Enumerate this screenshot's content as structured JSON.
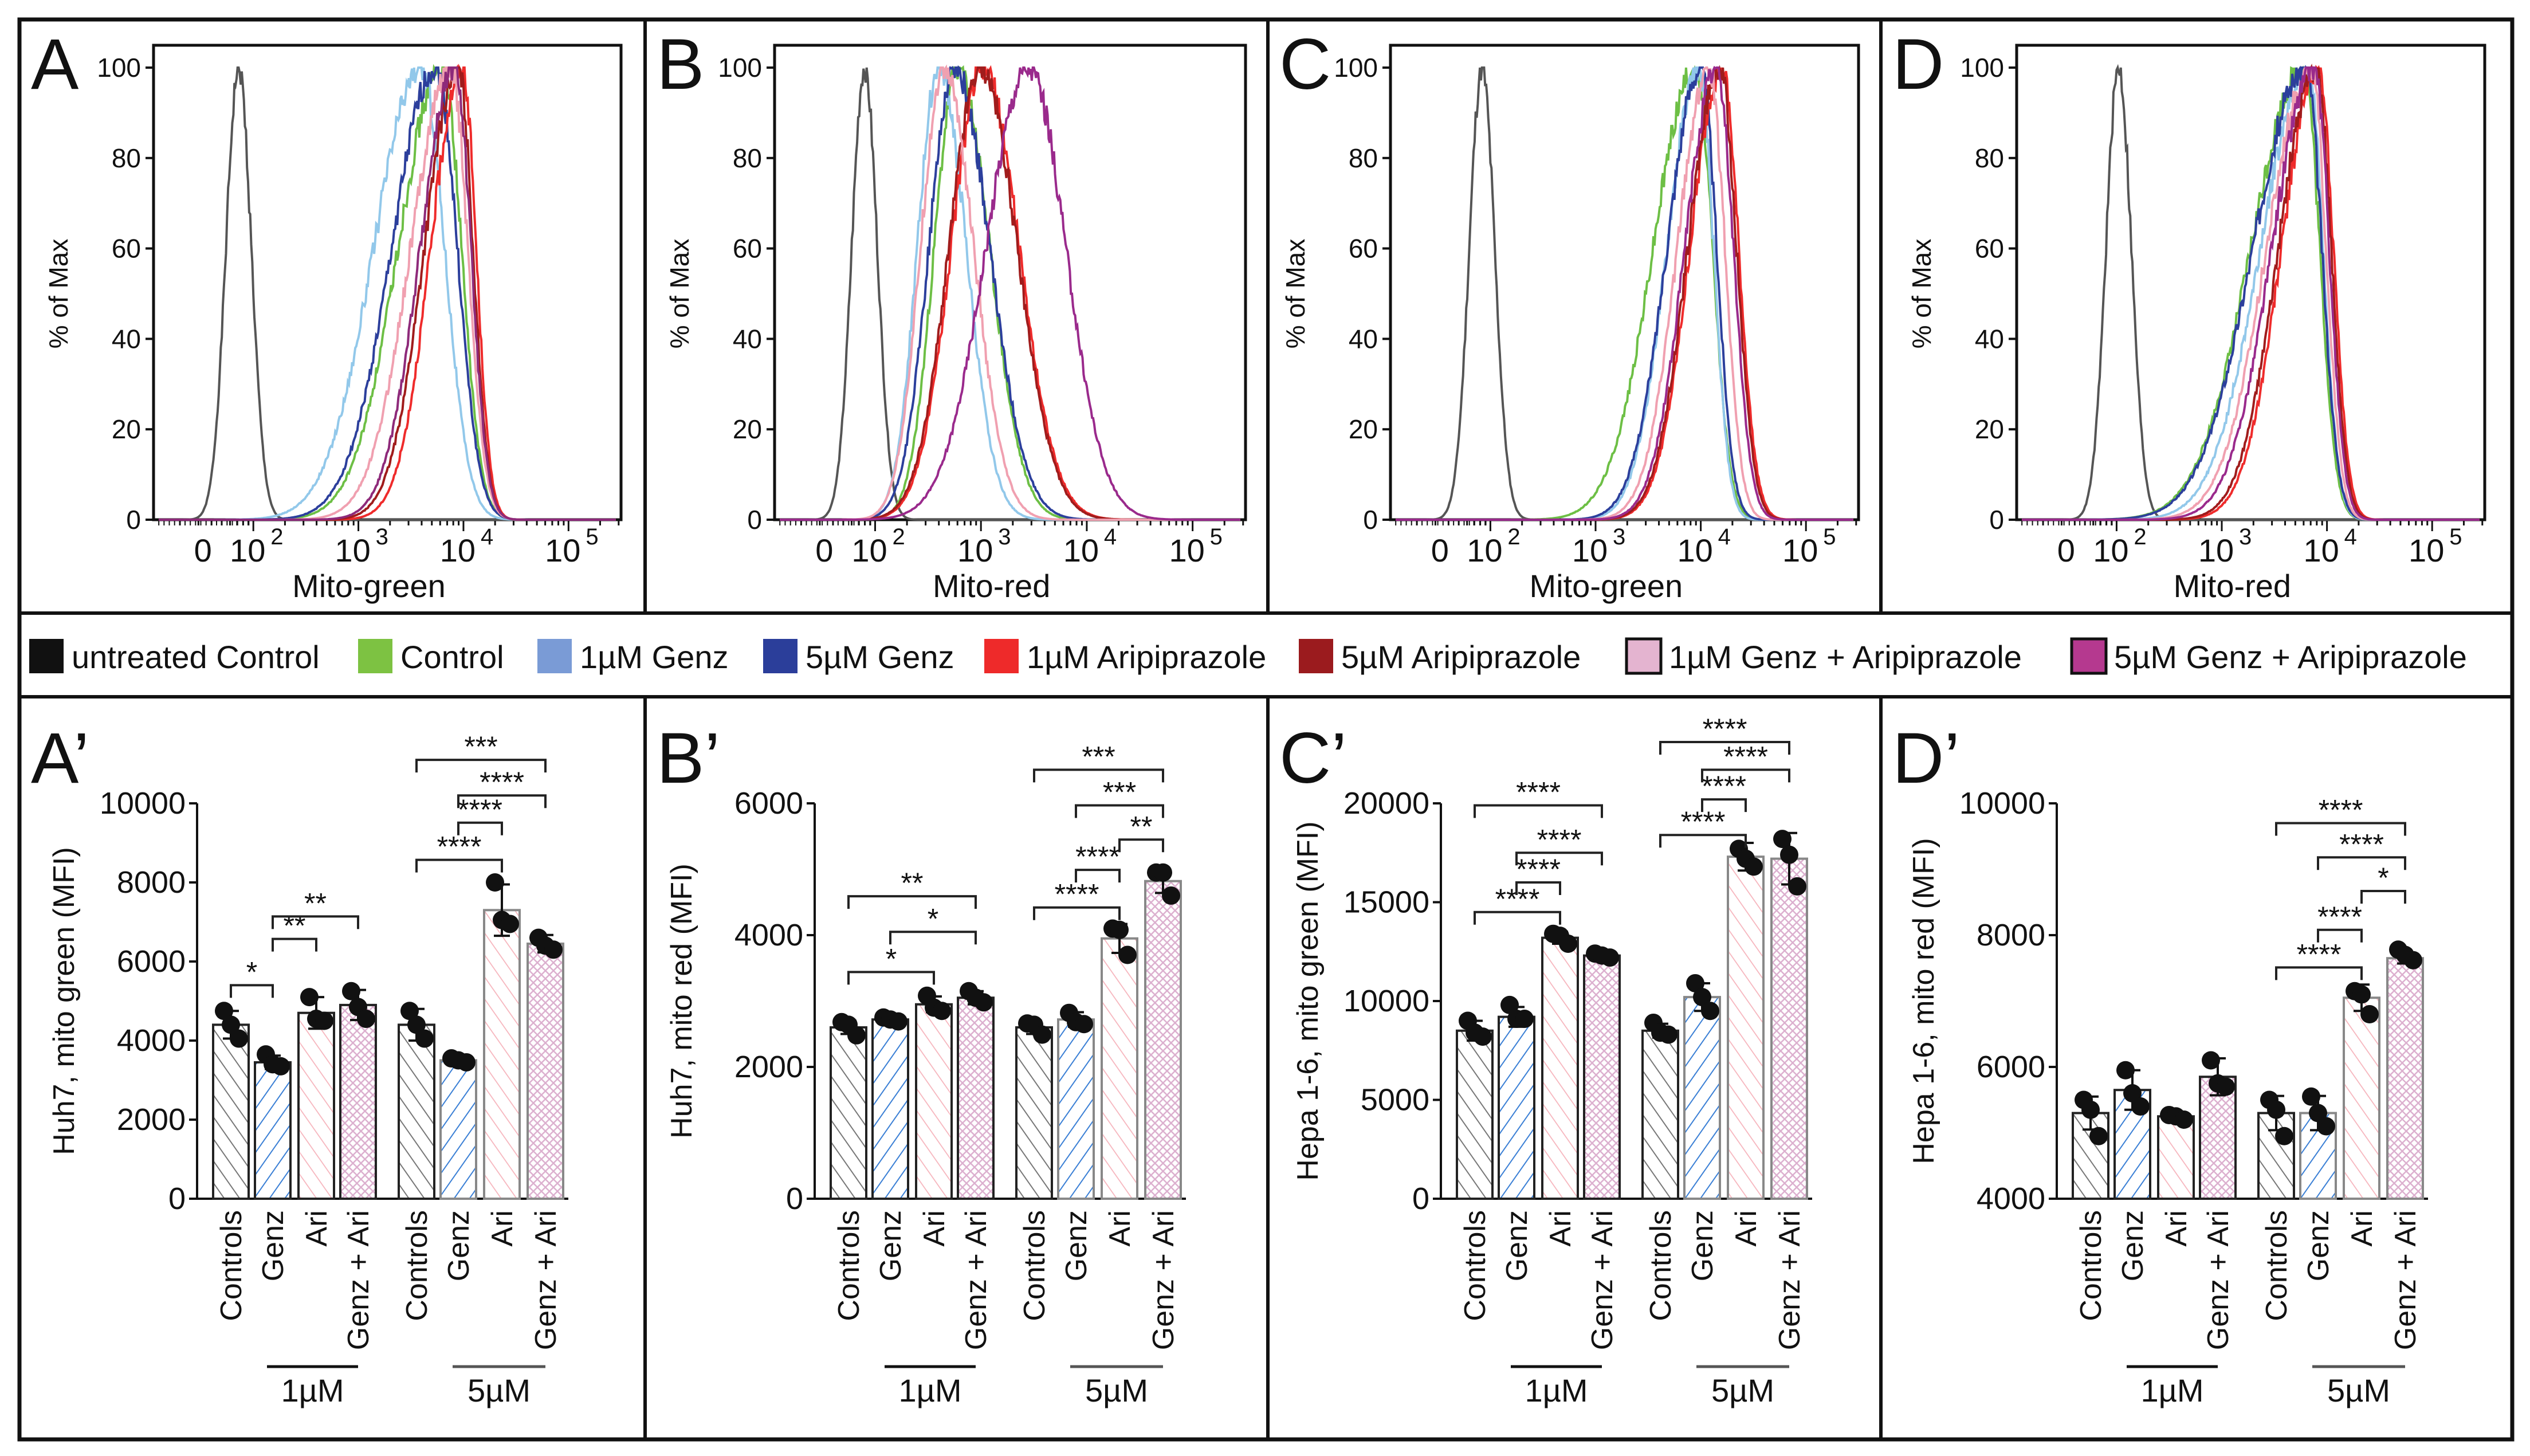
{
  "legend": {
    "items": [
      {
        "label": "untreated Control",
        "color": "#111111"
      },
      {
        "label": "Control",
        "color": "#7dc242"
      },
      {
        "label": "1µM Genz",
        "color": "#7a9bd6"
      },
      {
        "label": "5µM Genz",
        "color": "#2b3e9a"
      },
      {
        "label": "1µM Aripiprazole",
        "color": "#ee2a2a"
      },
      {
        "label": "5µM Aripiprazole",
        "color": "#9b1b1e"
      },
      {
        "label": "1µM Genz + Aripiprazole",
        "color": "#e4b4d0"
      },
      {
        "label": "5µM Genz + Aripiprazole",
        "color": "#b5398f"
      }
    ]
  },
  "chart_data": [
    {
      "type": "line",
      "panel": "A",
      "xlabel": "Mito-green",
      "ylabel": "% of Max",
      "ylim": [
        0,
        100
      ],
      "yticks": [
        "0",
        "20",
        "40",
        "60",
        "80",
        "100"
      ],
      "xticks": [
        "0",
        "10",
        "10",
        "10",
        "10"
      ],
      "xtick_exp": [
        "",
        "2",
        "3",
        "4",
        "5"
      ],
      "series": [
        {
          "name": "untreated Control",
          "color": "#555555",
          "peak_log10": 1.86,
          "sigma": [
            0.12,
            0.12
          ]
        },
        {
          "name": "Control",
          "color": "#6dbf45",
          "peak_log10": 3.8,
          "sigma": [
            0.42,
            0.18
          ]
        },
        {
          "name": "1µM Genz",
          "color": "#92c8ea",
          "peak_log10": 3.6,
          "sigma": [
            0.45,
            0.22
          ]
        },
        {
          "name": "5µM Genz",
          "color": "#2c3f9c",
          "peak_log10": 3.74,
          "sigma": [
            0.42,
            0.2
          ]
        },
        {
          "name": "1µM Aripiprazole",
          "color": "#ef2b2b",
          "peak_log10": 3.99,
          "sigma": [
            0.3,
            0.13
          ]
        },
        {
          "name": "5µM Aripiprazole",
          "color": "#a01c1c",
          "peak_log10": 3.95,
          "sigma": [
            0.32,
            0.14
          ]
        },
        {
          "name": "1µM Genz + Aripiprazole",
          "color": "#f0a0b0",
          "peak_log10": 3.88,
          "sigma": [
            0.38,
            0.16
          ]
        },
        {
          "name": "5µM Genz + Aripiprazole",
          "color": "#8e2a7a",
          "peak_log10": 3.92,
          "sigma": [
            0.33,
            0.15
          ]
        }
      ]
    },
    {
      "type": "line",
      "panel": "B",
      "xlabel": "Mito-red",
      "ylabel": "% of Max",
      "ylim": [
        0,
        100
      ],
      "yticks": [
        "0",
        "20",
        "40",
        "60",
        "80",
        "100"
      ],
      "xticks": [
        "0",
        "10",
        "10",
        "10",
        "10"
      ],
      "xtick_exp": [
        "",
        "2",
        "3",
        "4",
        "5"
      ],
      "series": [
        {
          "name": "untreated Control",
          "color": "#555555",
          "peak_log10": 1.9,
          "sigma": [
            0.12,
            0.12
          ]
        },
        {
          "name": "Control",
          "color": "#6dbf45",
          "peak_log10": 2.78,
          "sigma": [
            0.22,
            0.3
          ]
        },
        {
          "name": "1µM Genz",
          "color": "#92c8ea",
          "peak_log10": 2.6,
          "sigma": [
            0.2,
            0.26
          ]
        },
        {
          "name": "5µM Genz",
          "color": "#2c3f9c",
          "peak_log10": 2.75,
          "sigma": [
            0.24,
            0.33
          ]
        },
        {
          "name": "1µM Aripiprazole",
          "color": "#ef2b2b",
          "peak_log10": 3.02,
          "sigma": [
            0.3,
            0.34
          ]
        },
        {
          "name": "5µM Aripiprazole",
          "color": "#a01c1c",
          "peak_log10": 3.0,
          "sigma": [
            0.3,
            0.34
          ]
        },
        {
          "name": "1µM Genz + Aripiprazole",
          "color": "#f0a0b0",
          "peak_log10": 2.65,
          "sigma": [
            0.22,
            0.28
          ]
        },
        {
          "name": "5µM Genz + Aripiprazole",
          "color": "#9a2a8c",
          "peak_log10": 3.45,
          "sigma": [
            0.4,
            0.35
          ]
        }
      ]
    },
    {
      "type": "line",
      "panel": "C",
      "xlabel": "Mito-green",
      "ylabel": "% of Max",
      "ylim": [
        0,
        100
      ],
      "yticks": [
        "0",
        "20",
        "40",
        "60",
        "80",
        "100"
      ],
      "xticks": [
        "0",
        "10",
        "10",
        "10",
        "10"
      ],
      "xtick_exp": [
        "",
        "2",
        "3",
        "4",
        "5"
      ],
      "series": [
        {
          "name": "untreated Control",
          "color": "#555555",
          "peak_log10": 1.92,
          "sigma": [
            0.12,
            0.12
          ]
        },
        {
          "name": "Control",
          "color": "#6dbf45",
          "peak_log10": 3.95,
          "sigma": [
            0.4,
            0.16
          ]
        },
        {
          "name": "1µM Genz",
          "color": "#92c8ea",
          "peak_log10": 3.98,
          "sigma": [
            0.3,
            0.14
          ]
        },
        {
          "name": "5µM Genz",
          "color": "#2c3f9c",
          "peak_log10": 4.0,
          "sigma": [
            0.32,
            0.15
          ]
        },
        {
          "name": "1µM Aripiprazole",
          "color": "#ef2b2b",
          "peak_log10": 4.2,
          "sigma": [
            0.3,
            0.16
          ]
        },
        {
          "name": "5µM Aripiprazole",
          "color": "#a01c1c",
          "peak_log10": 4.18,
          "sigma": [
            0.3,
            0.16
          ]
        },
        {
          "name": "1µM Genz + Aripiprazole",
          "color": "#f0a0b0",
          "peak_log10": 4.08,
          "sigma": [
            0.3,
            0.15
          ]
        },
        {
          "name": "5µM Genz + Aripiprazole",
          "color": "#9a2a8c",
          "peak_log10": 4.15,
          "sigma": [
            0.3,
            0.16
          ]
        }
      ]
    },
    {
      "type": "line",
      "panel": "D",
      "xlabel": "Mito-red",
      "ylabel": "% of Max",
      "ylim": [
        0,
        100
      ],
      "yticks": [
        "0",
        "20",
        "40",
        "60",
        "80",
        "100"
      ],
      "xticks": [
        "0",
        "10",
        "10",
        "10",
        "10"
      ],
      "xtick_exp": [
        "",
        "2",
        "3",
        "4",
        "5"
      ],
      "series": [
        {
          "name": "untreated Control",
          "color": "#555555",
          "peak_log10": 2.02,
          "sigma": [
            0.12,
            0.12
          ]
        },
        {
          "name": "Control",
          "color": "#6dbf45",
          "peak_log10": 3.78,
          "sigma": [
            0.5,
            0.15
          ]
        },
        {
          "name": "1µM Genz",
          "color": "#92c8ea",
          "peak_log10": 3.82,
          "sigma": [
            0.45,
            0.14
          ]
        },
        {
          "name": "5µM Genz",
          "color": "#2c3f9c",
          "peak_log10": 3.8,
          "sigma": [
            0.5,
            0.15
          ]
        },
        {
          "name": "1µM Aripiprazole",
          "color": "#ef2b2b",
          "peak_log10": 3.92,
          "sigma": [
            0.35,
            0.14
          ]
        },
        {
          "name": "5µM Aripiprazole",
          "color": "#a01c1c",
          "peak_log10": 3.9,
          "sigma": [
            0.36,
            0.14
          ]
        },
        {
          "name": "1µM Genz + Aripiprazole",
          "color": "#f0a0b0",
          "peak_log10": 3.85,
          "sigma": [
            0.42,
            0.14
          ]
        },
        {
          "name": "5µM Genz + Aripiprazole",
          "color": "#9a2a8c",
          "peak_log10": 3.88,
          "sigma": [
            0.4,
            0.14
          ]
        }
      ]
    },
    {
      "type": "bar",
      "panel": "A’",
      "ylabel": "Huh7, mito green (MFI)",
      "ylim": [
        0,
        10000
      ],
      "yticks": [
        "0",
        "2000",
        "4000",
        "6000",
        "8000",
        "10000"
      ],
      "categories": [
        "Controls",
        "Genz",
        "Ari",
        "Genz + Ari",
        "Controls",
        "Genz",
        "Ari",
        "Genz + Ari"
      ],
      "groups": [
        "1µM",
        "5µM"
      ],
      "values": [
        4400,
        3450,
        4700,
        4900,
        4400,
        3500,
        7300,
        6450
      ],
      "sd": [
        350,
        170,
        400,
        380,
        400,
        60,
        650,
        220
      ],
      "points": [
        [
          4750,
          4400,
          4050
        ],
        [
          3650,
          3400,
          3350
        ],
        [
          5100,
          4550,
          4500
        ],
        [
          5250,
          4850,
          4550
        ],
        [
          4750,
          4400,
          4050
        ],
        [
          3550,
          3500,
          3450
        ],
        [
          8000,
          7050,
          6950
        ],
        [
          6600,
          6400,
          6300
        ]
      ],
      "significance": [
        {
          "from": 0,
          "to": 1,
          "label": "*",
          "level": 5400
        },
        {
          "from": 1,
          "to": 2,
          "label": "**",
          "level": 6570
        },
        {
          "from": 1,
          "to": 3,
          "label": "**",
          "level": 7140
        },
        {
          "from": 4,
          "to": 6,
          "label": "****",
          "level": 8570
        },
        {
          "from": 5,
          "to": 6,
          "label": "****",
          "level": 9510
        },
        {
          "from": 5,
          "to": 7,
          "label": "****",
          "level": 10200
        },
        {
          "from": 4,
          "to": 7,
          "label": "***",
          "level": 11100
        }
      ]
    },
    {
      "type": "bar",
      "panel": "B’",
      "ylabel": "Huh7, mito red (MFI)",
      "ylim": [
        0,
        6000
      ],
      "yticks": [
        "0",
        "2000",
        "4000",
        "6000"
      ],
      "categories": [
        "Controls",
        "Genz",
        "Ari",
        "Genz + Ari",
        "Controls",
        "Genz",
        "Ari",
        "Genz + Ari"
      ],
      "groups": [
        "1µM",
        "5µM"
      ],
      "values": [
        2600,
        2720,
        2950,
        3050,
        2600,
        2720,
        3950,
        4820
      ],
      "sd": [
        100,
        30,
        120,
        100,
        100,
        110,
        220,
        180
      ],
      "points": [
        [
          2680,
          2640,
          2480
        ],
        [
          2750,
          2720,
          2690
        ],
        [
          3080,
          2900,
          2850
        ],
        [
          3150,
          3050,
          2980
        ],
        [
          2660,
          2640,
          2490
        ],
        [
          2820,
          2680,
          2650
        ],
        [
          4100,
          4080,
          3700
        ],
        [
          4950,
          4950,
          4600
        ]
      ],
      "significance": [
        {
          "from": 0,
          "to": 2,
          "label": "*",
          "level": 3440
        },
        {
          "from": 1,
          "to": 3,
          "label": "*",
          "level": 4050
        },
        {
          "from": 0,
          "to": 3,
          "label": "**",
          "level": 4590
        },
        {
          "from": 4,
          "to": 6,
          "label": "****",
          "level": 4420
        },
        {
          "from": 5,
          "to": 6,
          "label": "****",
          "level": 4990
        },
        {
          "from": 6,
          "to": 7,
          "label": "**",
          "level": 5450
        },
        {
          "from": 5,
          "to": 7,
          "label": "***",
          "level": 5970
        },
        {
          "from": 4,
          "to": 7,
          "label": "***",
          "level": 6510
        }
      ]
    },
    {
      "type": "bar",
      "panel": "C’",
      "ylabel": "Hepa 1-6, mito green (MFI)",
      "ylim": [
        0,
        20000
      ],
      "yticks": [
        "0",
        "5000",
        "10000",
        "15000",
        "20000"
      ],
      "categories": [
        "Controls",
        "Genz",
        "Ari",
        "Genz + Ari",
        "Controls",
        "Genz",
        "Ari",
        "Genz + Ari"
      ],
      "groups": [
        "1µM",
        "5µM"
      ],
      "values": [
        8500,
        9200,
        13200,
        12300,
        8500,
        10200,
        17300,
        17200
      ],
      "sd": [
        500,
        500,
        300,
        100,
        350,
        700,
        700,
        1300
      ],
      "points": [
        [
          9000,
          8400,
          8200
        ],
        [
          9800,
          9100,
          9100
        ],
        [
          13400,
          13300,
          12900
        ],
        [
          12400,
          12300,
          12200
        ],
        [
          8900,
          8400,
          8300
        ],
        [
          10900,
          10200,
          9500
        ],
        [
          17700,
          17200,
          16800
        ],
        [
          18200,
          17400,
          15800
        ]
      ],
      "significance": [
        {
          "from": 0,
          "to": 2,
          "label": "****",
          "level": 14500
        },
        {
          "from": 1,
          "to": 2,
          "label": "****",
          "level": 16000
        },
        {
          "from": 1,
          "to": 3,
          "label": "****",
          "level": 17500
        },
        {
          "from": 0,
          "to": 3,
          "label": "****",
          "level": 19900
        },
        {
          "from": 4,
          "to": 6,
          "label": "****",
          "level": 18400
        },
        {
          "from": 5,
          "to": 6,
          "label": "****",
          "level": 20200
        },
        {
          "from": 5,
          "to": 7,
          "label": "****",
          "level": 21700
        },
        {
          "from": 4,
          "to": 7,
          "label": "****",
          "level": 23100
        }
      ]
    },
    {
      "type": "bar",
      "panel": "D’",
      "ylabel": "Hepa 1-6, mito red (MFI)",
      "ylim": [
        4000,
        10000
      ],
      "yticks": [
        "4000",
        "6000",
        "8000",
        "10000"
      ],
      "categories": [
        "Controls",
        "Genz",
        "Ari",
        "Genz + Ari",
        "Controls",
        "Genz",
        "Ari",
        "Genz + Ari"
      ],
      "groups": [
        "1µM",
        "5µM"
      ],
      "values": [
        5300,
        5650,
        5250,
        5850,
        5300,
        5300,
        7050,
        7650
      ],
      "sd": [
        250,
        300,
        40,
        280,
        260,
        260,
        200,
        80
      ],
      "points": [
        [
          5500,
          5350,
          4950
        ],
        [
          5950,
          5600,
          5400
        ],
        [
          5270,
          5250,
          5200
        ],
        [
          6100,
          5750,
          5700
        ],
        [
          5500,
          5350,
          4950
        ],
        [
          5550,
          5300,
          5100
        ],
        [
          7150,
          7100,
          6800
        ],
        [
          7780,
          7700,
          7620
        ]
      ],
      "significance": [
        {
          "from": 4,
          "to": 6,
          "label": "****",
          "level": 7510
        },
        {
          "from": 5,
          "to": 6,
          "label": "****",
          "level": 8080
        },
        {
          "from": 6,
          "to": 7,
          "label": "*",
          "level": 8670
        },
        {
          "from": 5,
          "to": 7,
          "label": "****",
          "level": 9180
        },
        {
          "from": 4,
          "to": 7,
          "label": "****",
          "level": 9700
        }
      ]
    }
  ]
}
